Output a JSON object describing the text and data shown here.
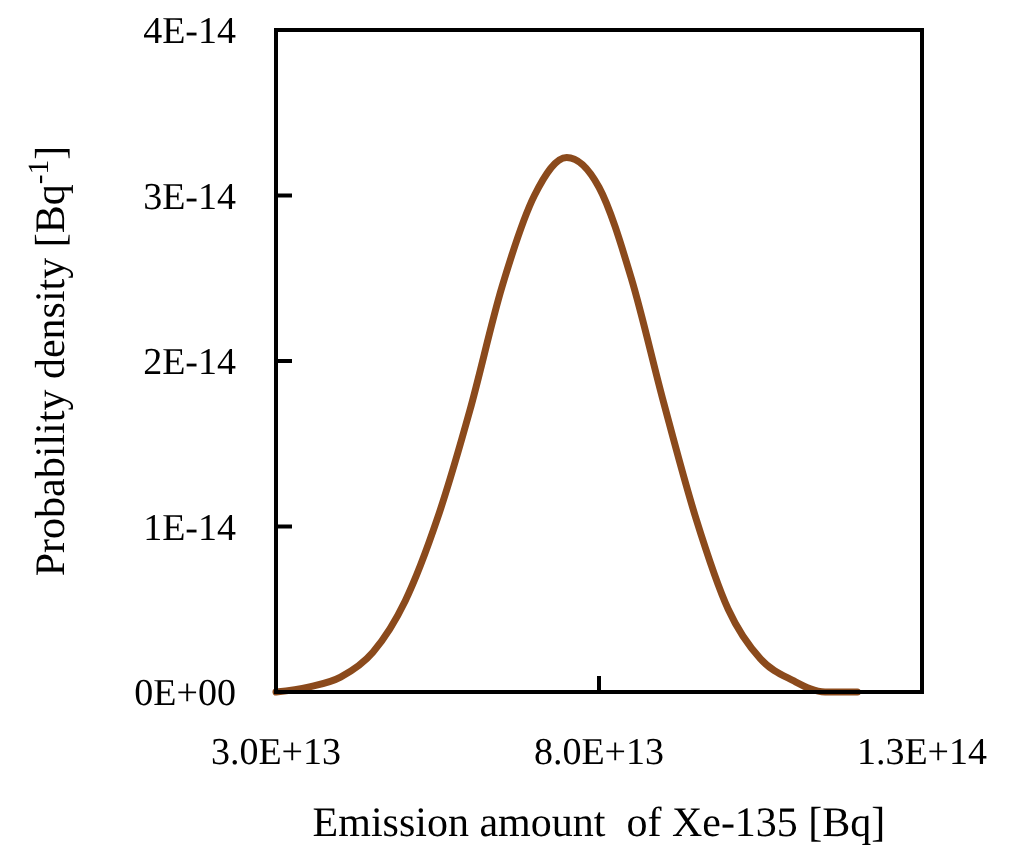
{
  "chart_data": {
    "type": "line",
    "xlabel": "Emission amount  of Xe-135 [Bq]",
    "ylabel": "Probability density [Bq$^{-1}$]",
    "x": [
      30000000000000.0,
      35000000000000.0,
      40000000000000.0,
      45000000000000.0,
      50000000000000.0,
      55000000000000.0,
      60000000000000.0,
      65000000000000.0,
      70000000000000.0,
      75000000000000.0,
      80000000000000.0,
      85000000000000.0,
      90000000000000.0,
      95000000000000.0,
      100000000000000.0,
      105000000000000.0,
      110000000000000.0,
      115000000000000.0,
      120000000000000.0
    ],
    "series": [
      {
        "color": "#8b4a1c",
        "values": [
          0,
          3e-16,
          9e-16,
          2.4e-15,
          5.5e-15,
          1.05e-14,
          1.7e-14,
          2.45e-14,
          3e-14,
          3.23e-14,
          3.05e-14,
          2.5e-14,
          1.75e-14,
          1.05e-14,
          5e-15,
          2e-15,
          7e-16,
          0,
          0
        ]
      }
    ],
    "xlim": [
      30000000000000.0,
      130000000000000.0
    ],
    "xticks": [
      {
        "value": 30000000000000.0,
        "label": "3.0E+13"
      },
      {
        "value": 80000000000000.0,
        "label": "8.0E+13"
      },
      {
        "value": 130000000000000.0,
        "label": "1.3E+14"
      }
    ],
    "ylim": [
      0,
      4e-14
    ],
    "yticks": [
      {
        "value": 0,
        "label": "0E+00"
      },
      {
        "value": 1e-14,
        "label": "1E-14"
      },
      {
        "value": 2e-14,
        "label": "2E-14"
      },
      {
        "value": 3e-14,
        "label": "3E-14"
      },
      {
        "value": 4e-14,
        "label": "4E-14"
      }
    ],
    "grid": false,
    "marker": "none",
    "line_style": "solid"
  }
}
